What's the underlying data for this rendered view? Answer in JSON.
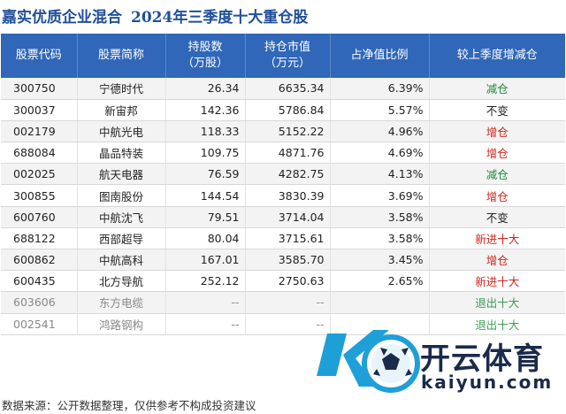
{
  "header": {
    "fund_name": "嘉实优质企业混合",
    "subtitle": "2024年三季度十大重仓股"
  },
  "table": {
    "columns": [
      {
        "line1": "股票代码",
        "line2": ""
      },
      {
        "line1": "股票简称",
        "line2": ""
      },
      {
        "line1": "持股数",
        "line2": "（万股）"
      },
      {
        "line1": "持仓市值",
        "line2": "（万元）"
      },
      {
        "line1": "占净值比例",
        "line2": ""
      },
      {
        "line1": "较上季度增减仓",
        "line2": ""
      }
    ],
    "rows": [
      {
        "code": "300750",
        "name": "宁德时代",
        "shares": "26.34",
        "value": "6635.34",
        "ratio": "6.39%",
        "change": "减仓",
        "change_type": "down"
      },
      {
        "code": "300037",
        "name": "新宙邦",
        "shares": "142.36",
        "value": "5786.84",
        "ratio": "5.57%",
        "change": "不变",
        "change_type": "same"
      },
      {
        "code": "002179",
        "name": "中航光电",
        "shares": "118.33",
        "value": "5152.22",
        "ratio": "4.96%",
        "change": "增仓",
        "change_type": "up"
      },
      {
        "code": "688084",
        "name": "晶品特装",
        "shares": "109.75",
        "value": "4871.76",
        "ratio": "4.69%",
        "change": "增仓",
        "change_type": "up"
      },
      {
        "code": "002025",
        "name": "航天电器",
        "shares": "76.59",
        "value": "4282.75",
        "ratio": "4.13%",
        "change": "减仓",
        "change_type": "down"
      },
      {
        "code": "300855",
        "name": "图南股份",
        "shares": "144.54",
        "value": "3830.39",
        "ratio": "3.69%",
        "change": "增仓",
        "change_type": "up"
      },
      {
        "code": "600760",
        "name": "中航沈飞",
        "shares": "79.51",
        "value": "3714.04",
        "ratio": "3.58%",
        "change": "不变",
        "change_type": "same"
      },
      {
        "code": "688122",
        "name": "西部超导",
        "shares": "80.04",
        "value": "3715.61",
        "ratio": "3.58%",
        "change": "新进十大",
        "change_type": "new"
      },
      {
        "code": "600862",
        "name": "中航高科",
        "shares": "167.01",
        "value": "3585.70",
        "ratio": "3.45%",
        "change": "增仓",
        "change_type": "up"
      },
      {
        "code": "600435",
        "name": "北方导航",
        "shares": "252.12",
        "value": "2750.63",
        "ratio": "2.65%",
        "change": "新进十大",
        "change_type": "new"
      },
      {
        "code": "603606",
        "name": "东方电缆",
        "shares": "--",
        "value": "--",
        "ratio": "",
        "change": "退出十大",
        "change_type": "exit"
      },
      {
        "code": "002541",
        "name": "鸿路钢构",
        "shares": "--",
        "value": "--",
        "ratio": "",
        "change": "退出十大",
        "change_type": "exit"
      }
    ]
  },
  "footer": {
    "source": "数据来源：公开数据整理，仅供参考不构成投资建议"
  },
  "watermark": {
    "brand": "开云体育",
    "domain": "kaiyun.com"
  },
  "colors": {
    "header_bg": "#3067b8",
    "title": "#1f4e9c",
    "increase": "#d0261c",
    "decrease": "#1e8c3a"
  }
}
